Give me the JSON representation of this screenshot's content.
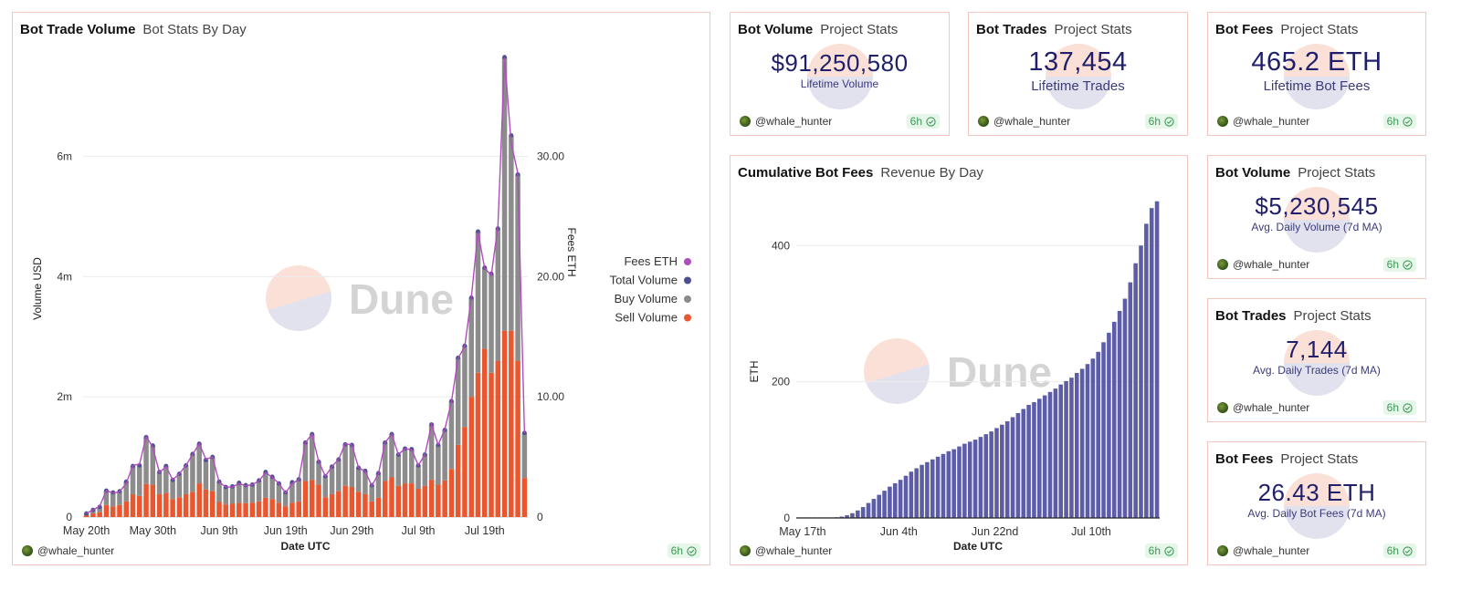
{
  "main_chart": {
    "title": "Bot Trade Volume",
    "subtitle": "Bot Stats By Day",
    "user": "@whale_hunter",
    "age": "6h",
    "watermark": "Dune"
  },
  "cumulative_chart": {
    "title": "Cumulative Bot Fees",
    "subtitle": "Revenue By Day",
    "user": "@whale_hunter",
    "age": "6h",
    "watermark": "Dune"
  },
  "counters": [
    {
      "title": "Bot Volume",
      "subtitle": "Project Stats",
      "value": "$91,250,580",
      "label": "Lifetime Volume",
      "user": "@whale_hunter",
      "age": "6h"
    },
    {
      "title": "Bot Trades",
      "subtitle": "Project Stats",
      "value": "137,454",
      "label": "Lifetime Trades",
      "user": "@whale_hunter",
      "age": "6h"
    },
    {
      "title": "Bot Fees",
      "subtitle": "Project Stats",
      "value": "465.2 ETH",
      "label": "Lifetime Bot Fees",
      "user": "@whale_hunter",
      "age": "6h"
    },
    {
      "title": "Bot Volume",
      "subtitle": "Project Stats",
      "value": "$5,230,545",
      "label": "Avg. Daily Volume (7d MA)",
      "user": "@whale_hunter",
      "age": "6h"
    },
    {
      "title": "Bot Trades",
      "subtitle": "Project Stats",
      "value": "7,144",
      "label": "Avg. Daily Trades (7d MA)",
      "user": "@whale_hunter",
      "age": "6h"
    },
    {
      "title": "Bot Fees",
      "subtitle": "Project Stats",
      "value": "26.43 ETH",
      "label": "Avg. Daily Bot Fees (7d MA)",
      "user": "@whale_hunter",
      "age": "6h"
    }
  ],
  "colors": {
    "sell": "#e8572f",
    "buy": "#8c8c8c",
    "total": "#4b4f93",
    "fees": "#b04dbd",
    "cumulative": "#5c5ca8",
    "border": "#f3c7bd"
  },
  "chart_data": [
    {
      "type": "bar",
      "title": "Bot Trade Volume",
      "xlabel": "Date UTC",
      "ylabel": "Volume USD",
      "y2label": "Fees ETH",
      "ylim": [
        0,
        7600000
      ],
      "y2lim": [
        0,
        38
      ],
      "yticks": [
        0,
        2000000,
        4000000,
        6000000
      ],
      "ytick_labels": [
        "0",
        "2m",
        "4m",
        "6m"
      ],
      "y2ticks": [
        0,
        10,
        20,
        30
      ],
      "y2tick_labels": [
        "0",
        "10.00",
        "20.00",
        "30.00"
      ],
      "xtick_labels": [
        "May 20th",
        "May 30th",
        "Jun 9th",
        "Jun 19th",
        "Jun 29th",
        "Jul 9th",
        "Jul 19th"
      ],
      "xtick_index": [
        0,
        10,
        20,
        30,
        40,
        50,
        60
      ],
      "legend": [
        "Fees ETH",
        "Total Volume",
        "Buy Volume",
        "Sell Volume"
      ],
      "legend_placement": "right",
      "stacked": true,
      "series": [
        {
          "name": "Sell Volume",
          "values": [
            30000,
            60000,
            80000,
            200000,
            180000,
            200000,
            260000,
            380000,
            350000,
            550000,
            540000,
            380000,
            400000,
            300000,
            330000,
            380000,
            420000,
            560000,
            460000,
            430000,
            250000,
            210000,
            220000,
            240000,
            230000,
            240000,
            260000,
            320000,
            300000,
            240000,
            180000,
            240000,
            260000,
            600000,
            620000,
            540000,
            330000,
            380000,
            430000,
            520000,
            500000,
            420000,
            380000,
            260000,
            320000,
            600000,
            660000,
            520000,
            560000,
            560000,
            470000,
            520000,
            620000,
            540000,
            610000,
            800000,
            1200000,
            1500000,
            2000000,
            2400000,
            2800000,
            2400000,
            2600000,
            3100000,
            3100000,
            2600000,
            650000
          ]
        },
        {
          "name": "Buy Volume",
          "values": [
            30000,
            60000,
            90000,
            240000,
            230000,
            230000,
            330000,
            470000,
            510000,
            780000,
            650000,
            370000,
            450000,
            320000,
            390000,
            480000,
            630000,
            660000,
            490000,
            570000,
            340000,
            290000,
            290000,
            330000,
            300000,
            300000,
            350000,
            430000,
            370000,
            320000,
            230000,
            340000,
            370000,
            640000,
            760000,
            380000,
            350000,
            460000,
            530000,
            690000,
            700000,
            400000,
            390000,
            270000,
            410000,
            640000,
            720000,
            520000,
            580000,
            570000,
            390000,
            520000,
            920000,
            660000,
            840000,
            1130000,
            1450000,
            1350000,
            1650000,
            2350000,
            1350000,
            1650000,
            2200000,
            4550000,
            3250000,
            3100000,
            750000
          ]
        },
        {
          "name": "Fees ETH",
          "axis": "right",
          "values": [
            0.3,
            0.6,
            0.9,
            2.2,
            2.0,
            2.1,
            2.8,
            4.3,
            4.4,
            6.7,
            5.8,
            3.7,
            4.2,
            3.1,
            3.6,
            4.3,
            5.2,
            6.1,
            4.8,
            5.0,
            2.9,
            2.5,
            2.5,
            2.8,
            2.6,
            2.7,
            3.0,
            3.7,
            3.3,
            2.8,
            2.0,
            2.8,
            3.1,
            6.2,
            6.9,
            4.6,
            3.4,
            4.2,
            4.8,
            6.1,
            6.0,
            4.1,
            3.8,
            2.6,
            3.6,
            6.2,
            6.9,
            5.2,
            5.7,
            5.6,
            4.3,
            5.2,
            7.7,
            6.0,
            7.3,
            9.6,
            13.2,
            14.2,
            18.3,
            23.7,
            20.7,
            20.1,
            24.2,
            38.2,
            31.1,
            28.6,
            7.0
          ]
        }
      ]
    },
    {
      "type": "bar",
      "title": "Cumulative Bot Fees",
      "xlabel": "Date UTC",
      "ylabel": "ETH",
      "ylim": [
        0,
        470
      ],
      "yticks": [
        0,
        200,
        400
      ],
      "ytick_labels": [
        "0",
        "200",
        "400"
      ],
      "xtick_labels": [
        "May 17th",
        "Jun 4th",
        "Jun 22nd",
        "Jul 10th"
      ],
      "xtick_index": [
        0,
        18,
        36,
        54
      ],
      "values": [
        0,
        0,
        0,
        0,
        0,
        0,
        0.5,
        1,
        2,
        4,
        7,
        11,
        16,
        22,
        28,
        34,
        40,
        46,
        51,
        56,
        62,
        68,
        73,
        78,
        82,
        86,
        90,
        94,
        98,
        101,
        105,
        109,
        112,
        115,
        119,
        123,
        127,
        132,
        137,
        142,
        148,
        154,
        160,
        166,
        170,
        175,
        180,
        185,
        190,
        196,
        201,
        206,
        213,
        219,
        226,
        234,
        244,
        258,
        272,
        288,
        304,
        322,
        346,
        374,
        400,
        432,
        455,
        465
      ]
    }
  ]
}
